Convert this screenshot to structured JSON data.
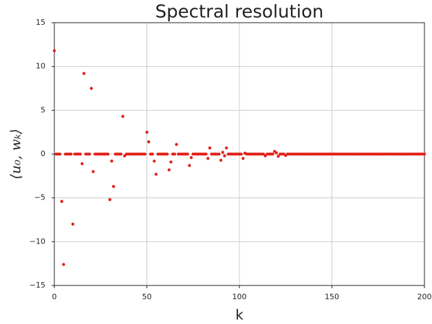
{
  "chart_data": {
    "type": "scatter",
    "title": "Spectral resolution",
    "x_label": "k",
    "y_label": "⟨u₀, wₖ⟩",
    "color": "#e2231a",
    "grid": true,
    "xlim": [
      0,
      200
    ],
    "xticks": [
      0,
      50,
      100,
      150,
      200
    ],
    "ylim": [
      -15,
      15
    ],
    "yticks": [
      {
        "value": -15,
        "label": "−15"
      },
      {
        "value": -10,
        "label": "−10"
      },
      {
        "value": -5,
        "label": "−5"
      },
      0,
      5,
      10,
      15
    ],
    "x": [
      0,
      1,
      2,
      3,
      4,
      5,
      6,
      7,
      8,
      9,
      10,
      11,
      12,
      13,
      14,
      15,
      16,
      17,
      18,
      19,
      20,
      21,
      22,
      23,
      24,
      25,
      26,
      27,
      28,
      29,
      30,
      31,
      32,
      33,
      34,
      35,
      36,
      37,
      38,
      39,
      40,
      41,
      42,
      43,
      44,
      45,
      46,
      47,
      48,
      49,
      50,
      51,
      52,
      53,
      54,
      55,
      56,
      57,
      58,
      59,
      60,
      61,
      62,
      63,
      64,
      65,
      66,
      67,
      68,
      69,
      70,
      71,
      72,
      73,
      74,
      75,
      76,
      77,
      78,
      79,
      80,
      81,
      82,
      83,
      84,
      85,
      86,
      87,
      88,
      89,
      90,
      91,
      92,
      93,
      94,
      95,
      96,
      97,
      98,
      99,
      100,
      101,
      102,
      103,
      104,
      105,
      106,
      107,
      108,
      109,
      110,
      111,
      112,
      113,
      114,
      115,
      116,
      117,
      118,
      119,
      120,
      121,
      122,
      123,
      124,
      125,
      126,
      127,
      128,
      129,
      130,
      131,
      132,
      133,
      134,
      135,
      136,
      137,
      138,
      139,
      140,
      141,
      142,
      143,
      144,
      145,
      146,
      147,
      148,
      149,
      150,
      151,
      152,
      153,
      154,
      155,
      156,
      157,
      158,
      159,
      160,
      161,
      162,
      163,
      164,
      165,
      166,
      167,
      168,
      169,
      170,
      171,
      172,
      173,
      174,
      175,
      176,
      177,
      178,
      179,
      180,
      181,
      182,
      183,
      184,
      185,
      186,
      187,
      188,
      189,
      190,
      191,
      192,
      193,
      194,
      195,
      196,
      197,
      198,
      199,
      200
    ],
    "values": [
      11.8,
      0,
      0,
      0,
      -5.4,
      -12.6,
      0,
      0,
      0,
      0,
      -8.0,
      0,
      0,
      0,
      0,
      -1.1,
      9.2,
      0,
      0,
      0,
      7.5,
      -2.0,
      0,
      0,
      0,
      0,
      0,
      0,
      0,
      0,
      -5.2,
      -0.8,
      -3.7,
      0,
      0,
      0,
      0,
      4.3,
      -0.2,
      0,
      0,
      0,
      0,
      0,
      0,
      0,
      0,
      0,
      0,
      0,
      2.5,
      1.4,
      0,
      0,
      -0.8,
      -2.3,
      0,
      0,
      0,
      0,
      0,
      0,
      -1.8,
      -0.9,
      0,
      0,
      1.1,
      0,
      0,
      0,
      0,
      0,
      0,
      -1.3,
      -0.4,
      0,
      0,
      0,
      0,
      0,
      0,
      0,
      0,
      -0.5,
      0.7,
      0,
      0,
      0,
      0,
      0,
      -0.7,
      0.2,
      -0.2,
      0.7,
      0,
      0,
      0,
      0,
      0,
      0,
      0,
      0,
      -0.5,
      0.1,
      0,
      0,
      0,
      0,
      0,
      0,
      0,
      0,
      0,
      0,
      -0.2,
      0,
      0,
      0,
      0,
      0.3,
      0.15,
      -0.25,
      0,
      0,
      0,
      -0.15,
      0,
      0,
      0,
      0,
      0,
      0,
      0,
      0,
      0,
      0,
      0,
      0,
      0,
      0,
      0,
      0,
      0,
      0,
      0,
      0,
      0,
      0,
      0,
      0,
      0,
      0,
      0,
      0,
      0,
      0,
      0,
      0,
      0,
      0,
      0,
      0,
      0,
      0,
      0,
      0,
      0,
      0,
      0,
      0,
      0,
      0,
      0,
      0,
      0,
      0,
      0,
      0,
      0,
      0,
      0,
      0,
      0,
      0,
      0,
      0,
      0,
      0,
      0,
      0,
      0,
      0,
      0,
      0,
      0,
      0,
      0,
      0,
      0,
      0,
      0
    ]
  }
}
